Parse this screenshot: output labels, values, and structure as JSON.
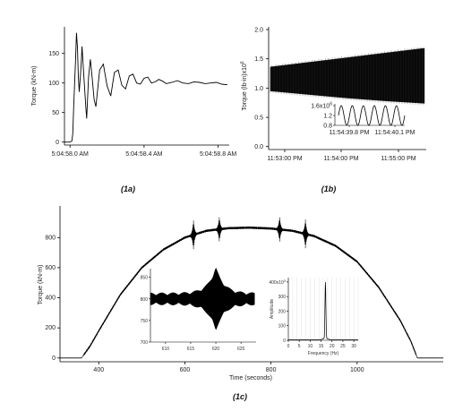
{
  "captions": {
    "a": "(1a)",
    "b": "(1b)",
    "c": "(1c)"
  },
  "chart_data": [
    {
      "id": "1a",
      "type": "line",
      "title": "",
      "xlabel": "",
      "ylabel": "Torque (kN-m)",
      "xticks": [
        "5:04:58.0 AM",
        "5:04:58.4 AM",
        "5:04:58.8 AM"
      ],
      "yticks": [
        "0",
        "50",
        "100",
        "150"
      ],
      "xlim": [
        -0.03,
        0.86
      ],
      "ylim": [
        -5,
        195
      ],
      "grid": false,
      "series": [
        {
          "x": [
            -0.03,
            0.0,
            0.01,
            0.015,
            0.02,
            0.03,
            0.035,
            0.04,
            0.045,
            0.05,
            0.06,
            0.065,
            0.075,
            0.085,
            0.09,
            0.1,
            0.11,
            0.12,
            0.13,
            0.14,
            0.16,
            0.18,
            0.2,
            0.22,
            0.24,
            0.26,
            0.28,
            0.3,
            0.32,
            0.34,
            0.36,
            0.38,
            0.4,
            0.42,
            0.44,
            0.46,
            0.48,
            0.5,
            0.52,
            0.55,
            0.58,
            0.61,
            0.64,
            0.67,
            0.7,
            0.73,
            0.76,
            0.79,
            0.82,
            0.85
          ],
          "y": [
            0,
            0,
            2,
            15,
            60,
            140,
            185,
            160,
            110,
            85,
            130,
            162,
            110,
            60,
            40,
            110,
            140,
            108,
            72,
            60,
            122,
            132,
            95,
            78,
            118,
            122,
            96,
            90,
            112,
            115,
            100,
            98,
            108,
            110,
            100,
            102,
            106,
            103,
            99,
            101,
            104,
            100,
            99,
            102,
            101,
            99,
            100,
            101,
            98,
            97
          ]
        }
      ]
    },
    {
      "id": "1b",
      "type": "area",
      "title": "",
      "xlabel": "",
      "ylabel": "Torque (lb-in)x10",
      "ylabel_exp": "6",
      "xticks": [
        "11:53:00 PM",
        "11:54:00 PM",
        "11:55:00 PM"
      ],
      "yticks": [
        "0.0",
        "0.5",
        "1.0",
        "1.5",
        "2.0"
      ],
      "ylim": [
        -0.05,
        2.0
      ],
      "grid": false,
      "note": "dense oscillation between the envelope bounds",
      "series": [
        {
          "x": [
            0,
            0.25,
            0.5,
            0.75,
            1.0
          ],
          "upper": [
            1.36,
            1.44,
            1.52,
            1.6,
            1.68
          ],
          "lower": [
            0.95,
            0.89,
            0.83,
            0.78,
            0.74
          ]
        }
      ],
      "inset": {
        "type": "line",
        "xticks": [
          "11:54:39.8 PM",
          "11:54:40.1 PM"
        ],
        "yticks": [
          "0.8",
          "1.2",
          "1.6x10"
        ],
        "ytick_exp": "6",
        "ylim": [
          0.8,
          1.6
        ],
        "cycles": 6,
        "mean": 1.2,
        "amplitude": 0.4
      }
    },
    {
      "id": "1c",
      "type": "line",
      "title": "",
      "xlabel": "Time (seconds)",
      "ylabel": "Torque (kN-m)",
      "xticks": [
        "400",
        "600",
        "800",
        "1000"
      ],
      "xtick_values": [
        400,
        600,
        800,
        1000
      ],
      "yticks": [
        "0",
        "200",
        "400",
        "600",
        "800"
      ],
      "ytick_values": [
        0,
        200,
        400,
        600,
        800
      ],
      "xlim": [
        310,
        1200
      ],
      "ylim": [
        -25,
        1010
      ],
      "grid": false,
      "series": [
        {
          "x": [
            310,
            360,
            380,
            400,
            450,
            500,
            550,
            600,
            650,
            700,
            750,
            800,
            850,
            900,
            950,
            1000,
            1050,
            1100,
            1125,
            1140,
            1160,
            1200
          ],
          "y": [
            0,
            0,
            80,
            180,
            420,
            600,
            720,
            800,
            845,
            862,
            866,
            860,
            845,
            810,
            745,
            640,
            470,
            250,
            110,
            0,
            0,
            0
          ],
          "transients": [
            {
              "x": 620,
              "amp": 95
            },
            {
              "x": 680,
              "amp": 80
            },
            {
              "x": 820,
              "amp": 80
            },
            {
              "x": 880,
              "amp": 95
            }
          ]
        }
      ],
      "insets": [
        {
          "type": "line",
          "xticks": [
            "610",
            "615",
            "620",
            "625"
          ],
          "yticks": [
            "700",
            "750",
            "800",
            "850"
          ],
          "xlim": [
            607,
            628
          ],
          "ylim": [
            700,
            870
          ],
          "mean": 800,
          "burst_center": 620,
          "note": "oscillating torque with transient burst"
        },
        {
          "type": "line",
          "xlabel": "Frequency (Hz)",
          "ylabel": "Amplitude",
          "xticks": [
            "0",
            "5",
            "10",
            "15",
            "20",
            "25",
            "30"
          ],
          "yticks": [
            "0",
            "100",
            "200",
            "300",
            "400x10"
          ],
          "ytick_exp": "3",
          "xlim": [
            0,
            32
          ],
          "ylim": [
            0,
            430
          ],
          "peak": {
            "x": 17,
            "y": 385
          },
          "note": "single spectral peak"
        }
      ]
    }
  ]
}
